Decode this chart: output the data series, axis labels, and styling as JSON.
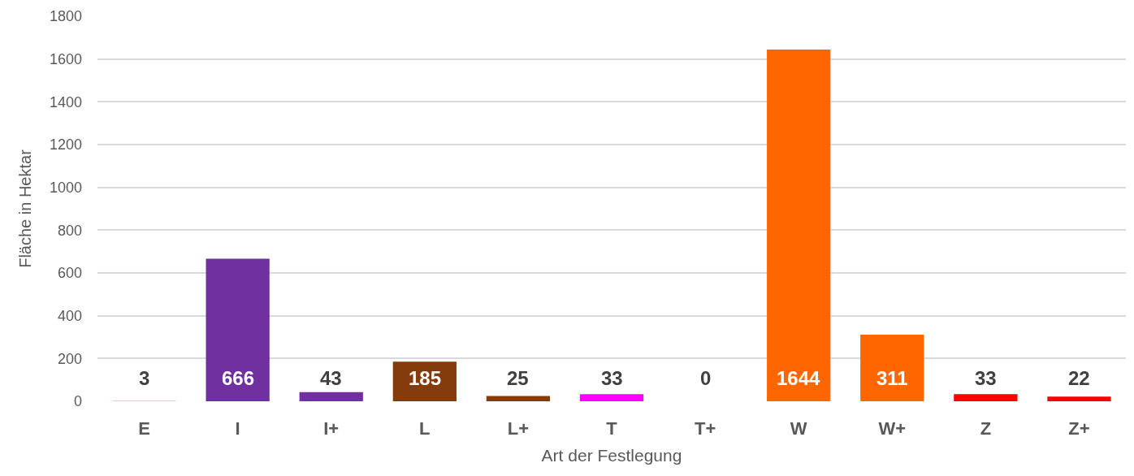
{
  "chart_data": {
    "type": "bar",
    "xlabel": "Art der Festlegung",
    "ylabel": "Fläche in Hektar",
    "categories": [
      "E",
      "I",
      "I+",
      "L",
      "L+",
      "T",
      "T+",
      "W",
      "W+",
      "Z",
      "Z+"
    ],
    "values": [
      3,
      666,
      43,
      185,
      25,
      33,
      0,
      1644,
      311,
      33,
      22
    ],
    "colors": [
      "#e8c8e8",
      "#7030a0",
      "#7030a0",
      "#843c0c",
      "#843c0c",
      "#ff00ff",
      "#ff00ff",
      "#ff6600",
      "#ff6600",
      "#ff0000",
      "#ff0000"
    ],
    "ylim": [
      0,
      1800
    ],
    "yticks": [
      0,
      200,
      400,
      600,
      800,
      1000,
      1200,
      1400,
      1600,
      1800
    ],
    "grid": "y",
    "data_labels": true
  }
}
